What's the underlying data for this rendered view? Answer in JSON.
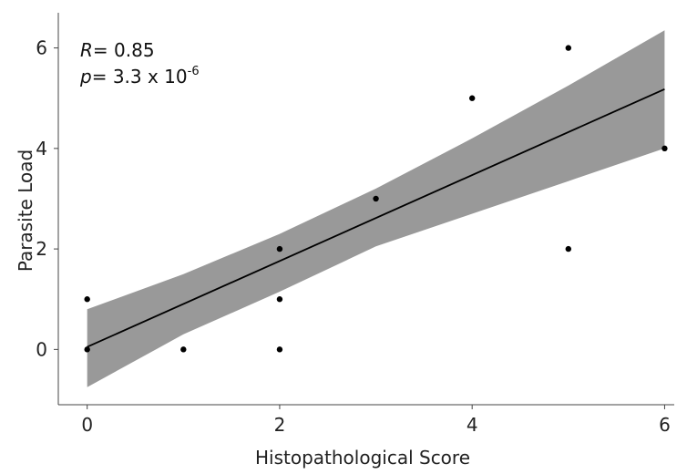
{
  "chart_data": {
    "type": "scatter",
    "title": "",
    "xlabel": "Histopathological Score",
    "ylabel": "Parasite Load",
    "xlim": [
      -0.3,
      6.1
    ],
    "ylim": [
      -1.1,
      6.7
    ],
    "x_ticks": [
      0,
      2,
      4,
      6
    ],
    "y_ticks": [
      0,
      2,
      4,
      6
    ],
    "grid": false,
    "points": [
      {
        "x": 0,
        "y": 1
      },
      {
        "x": 0,
        "y": 0
      },
      {
        "x": 1,
        "y": 0
      },
      {
        "x": 2,
        "y": 2
      },
      {
        "x": 2,
        "y": 1
      },
      {
        "x": 2,
        "y": 0
      },
      {
        "x": 3,
        "y": 3
      },
      {
        "x": 4,
        "y": 5
      },
      {
        "x": 5,
        "y": 6
      },
      {
        "x": 5,
        "y": 2
      },
      {
        "x": 6,
        "y": 4
      }
    ],
    "fit_line": {
      "x": [
        0,
        6
      ],
      "y": [
        0.05,
        5.18
      ]
    },
    "confidence_band": {
      "x": [
        0,
        1,
        2,
        3,
        4,
        5,
        6
      ],
      "upper": [
        0.8,
        1.5,
        2.3,
        3.2,
        4.2,
        5.25,
        6.35
      ],
      "lower": [
        -0.75,
        0.3,
        1.15,
        2.05,
        2.7,
        3.35,
        4.0
      ]
    },
    "colors": {
      "band": "#999999",
      "line": "#000000",
      "points": "#000000"
    },
    "annotation": {
      "r_symbol": "R",
      "r_text": "= 0.85",
      "p_symbol": "p",
      "p_text": "= 3.3 x 10",
      "p_exponent": "-6"
    }
  }
}
